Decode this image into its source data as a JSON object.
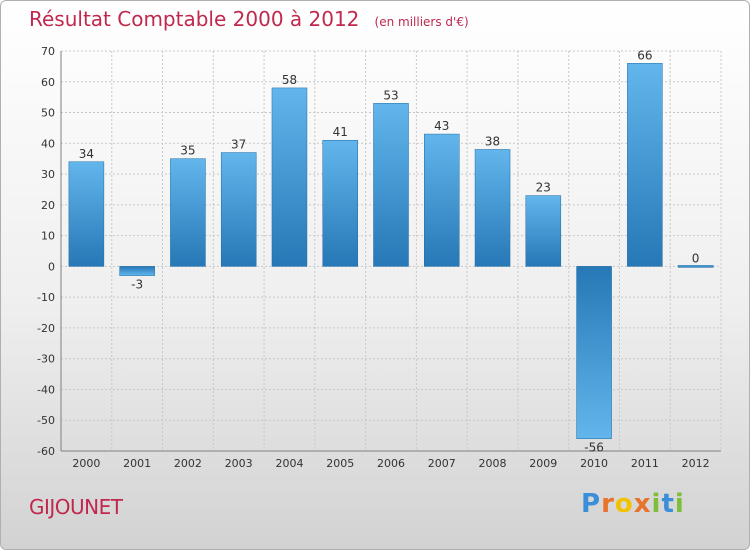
{
  "chart_data": {
    "type": "bar",
    "title": "Résultat Comptable 2000 à 2012",
    "subtitle": "(en milliers d'€)",
    "categories": [
      "2000",
      "2001",
      "2002",
      "2003",
      "2004",
      "2005",
      "2006",
      "2007",
      "2008",
      "2009",
      "2010",
      "2011",
      "2012"
    ],
    "values": [
      34,
      -3,
      35,
      37,
      58,
      41,
      53,
      43,
      38,
      23,
      -56,
      66,
      0
    ],
    "value_labels": [
      "34",
      "-3",
      "35",
      "37",
      "58",
      "41",
      "53",
      "43",
      "38",
      "23",
      "-56",
      "66",
      "0"
    ],
    "ylim": [
      -60,
      70
    ],
    "yticks": [
      70,
      60,
      50,
      40,
      30,
      20,
      10,
      0,
      -10,
      -20,
      -30,
      -40,
      -50,
      -60
    ],
    "grid": true,
    "xlabel": "",
    "ylabel": ""
  },
  "footer": {
    "commune": "GIJOUNET",
    "logo_letters": [
      "P",
      "r",
      "o",
      "x",
      "i",
      "t",
      "i"
    ],
    "logo_colors": [
      "#3b8fd9",
      "#e8732a",
      "#f2c200",
      "#e8732a",
      "#7dbf3a",
      "#3b8fd9",
      "#7dbf3a"
    ]
  },
  "colors": {
    "title": "#c0284e",
    "bar_light": "#5eb3ea",
    "bar_dark": "#2a7ab8",
    "grid": "#c8c8c8",
    "axis": "#808080"
  }
}
